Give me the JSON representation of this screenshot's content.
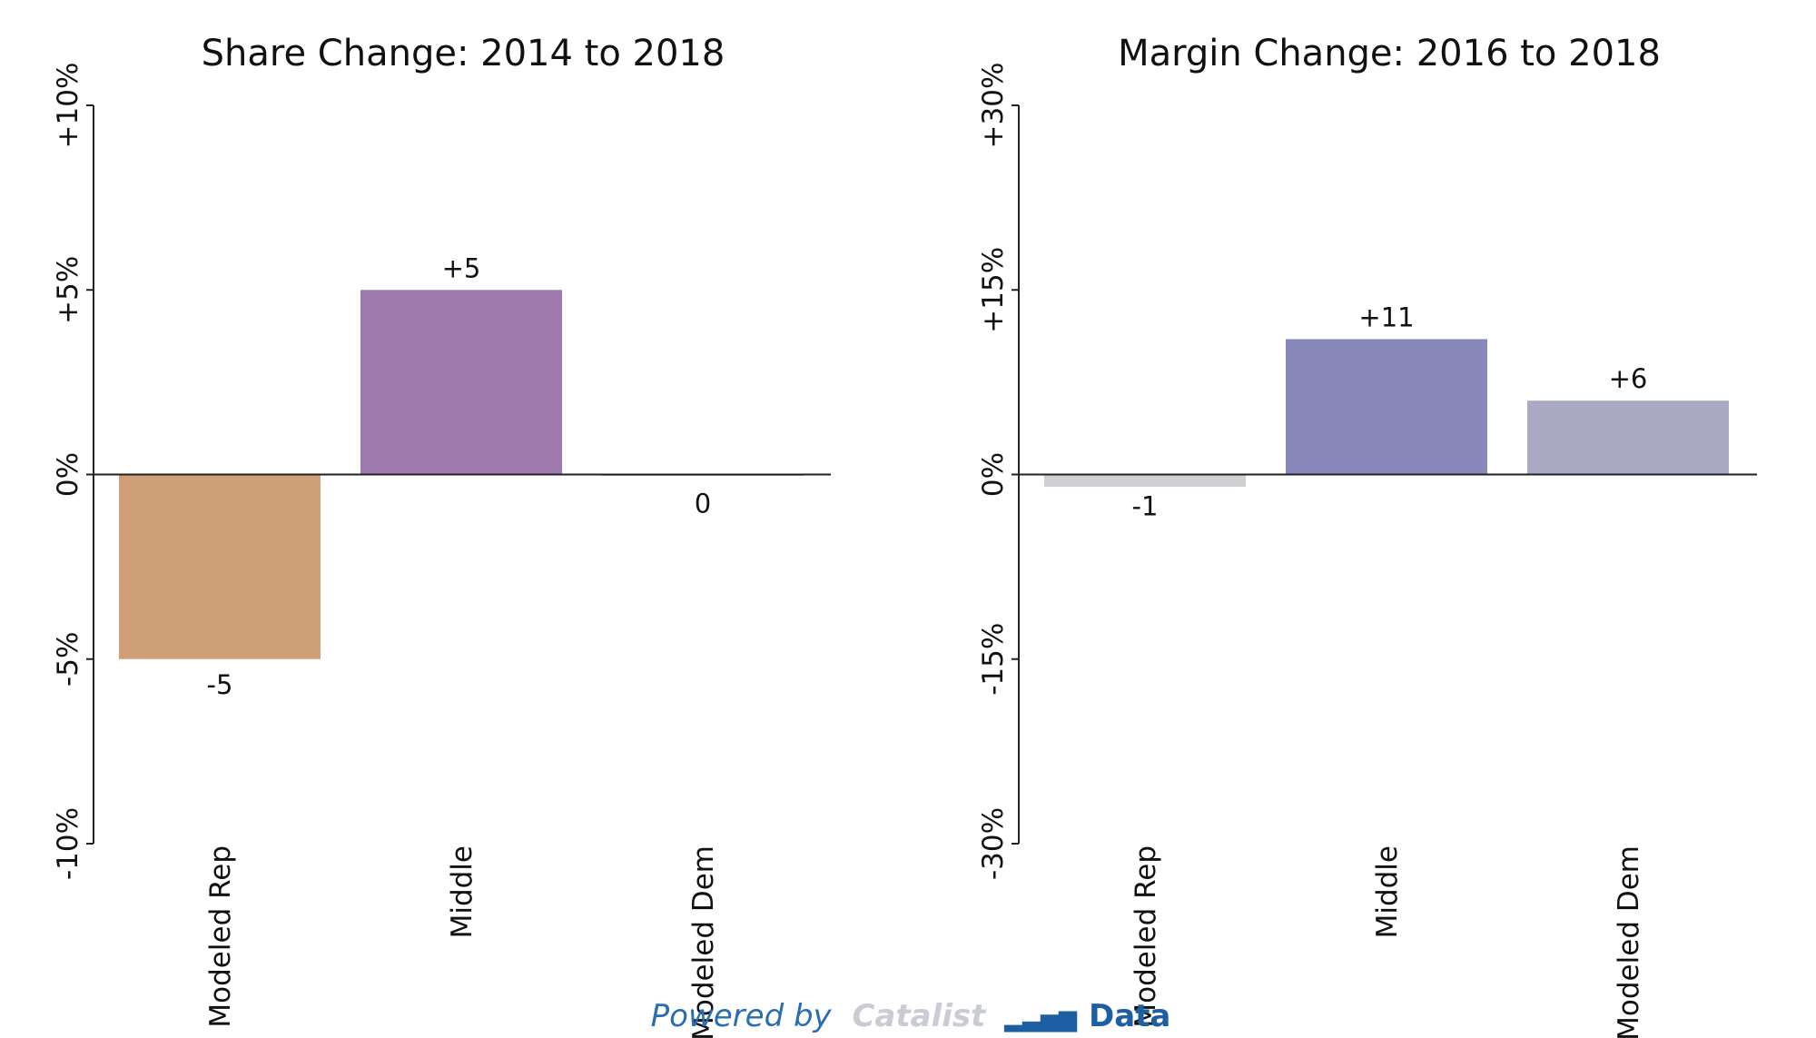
{
  "chart_data": [
    {
      "type": "bar",
      "title": "Share Change: 2014 to 2018",
      "categories": [
        "Modeled Rep",
        "Middle",
        "Modeled Dem"
      ],
      "values": [
        -5,
        5,
        0
      ],
      "value_labels": [
        "-5",
        "+5",
        "0"
      ],
      "colors": [
        "#cf9f78",
        "#9e7aae",
        "#b8b8c2"
      ],
      "ylim": [
        -10,
        10
      ],
      "yticks": [
        -10,
        -5,
        0,
        5,
        10
      ],
      "ytick_labels": [
        "-10%",
        "-5%",
        "0%",
        "+5%",
        "+10%"
      ],
      "xlabel": "",
      "ylabel": "",
      "grid": false
    },
    {
      "type": "bar",
      "title": "Margin Change: 2016 to 2018",
      "categories": [
        "Modeled Rep",
        "Middle",
        "Modeled Dem"
      ],
      "values": [
        -1,
        11,
        6
      ],
      "value_labels": [
        "-1",
        "+11",
        "+6"
      ],
      "colors": [
        "#cfcfd4",
        "#8788b9",
        "#a9a9c3"
      ],
      "ylim": [
        -30,
        30
      ],
      "yticks": [
        -30,
        -15,
        0,
        15,
        30
      ],
      "ytick_labels": [
        "-30%",
        "-15%",
        "0%",
        "+15%",
        "+30%"
      ],
      "xlabel": "",
      "ylabel": "",
      "grid": false
    }
  ],
  "footer": {
    "powered_by": "Powered by",
    "brand": "Catalist",
    "product": "Data",
    "powered_color": "#2a6db0",
    "brand_color": "#c9ccd2",
    "product_color": "#1d5fa3"
  }
}
